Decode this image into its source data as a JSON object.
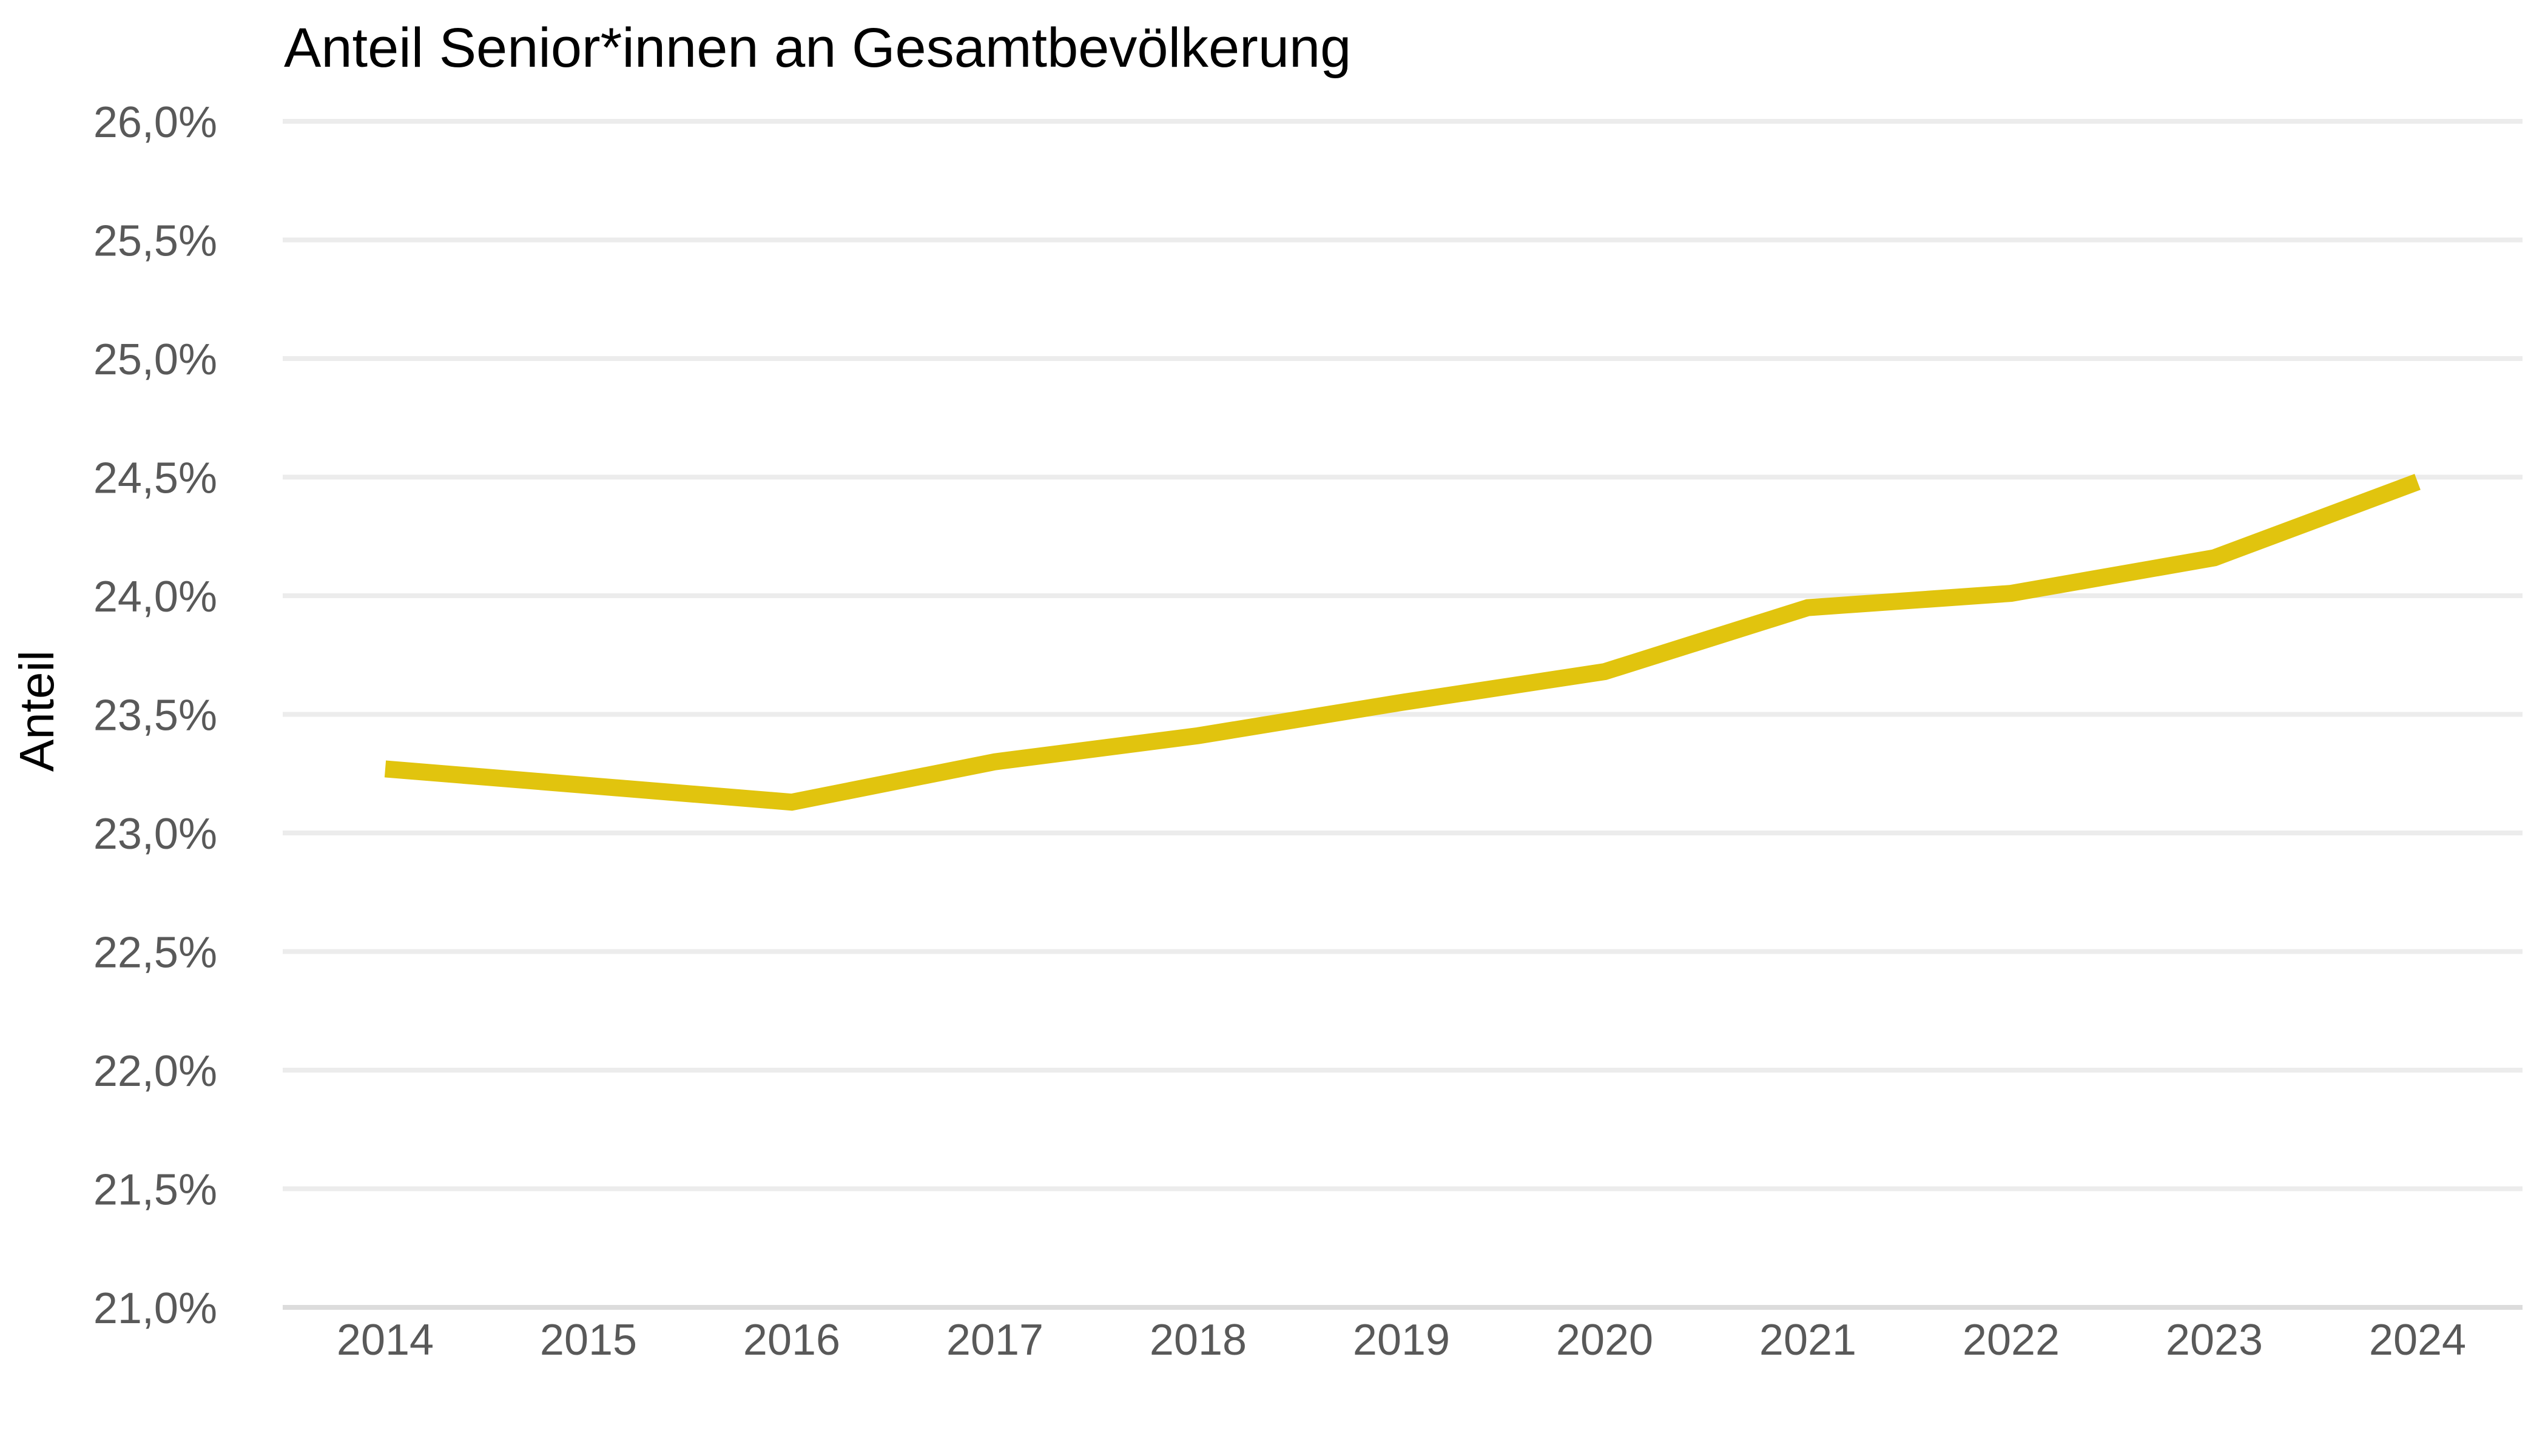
{
  "chart_data": {
    "type": "line",
    "title": "Anteil Senior*innen an Gesamtbevölkerung",
    "ylabel": "Anteil",
    "xlabel": "",
    "categories": [
      "2014",
      "2015",
      "2016",
      "2017",
      "2018",
      "2019",
      "2020",
      "2021",
      "2022",
      "2023",
      "2024"
    ],
    "values": [
      23.27,
      23.2,
      23.13,
      23.3,
      23.41,
      23.55,
      23.68,
      23.95,
      24.01,
      24.16,
      24.48
    ],
    "ylim": [
      21.0,
      26.0
    ],
    "ytick_step": 0.5,
    "ytick_labels": [
      "26,0%",
      "25,5%",
      "25,0%",
      "24,5%",
      "24,0%",
      "23,5%",
      "23,0%",
      "22,5%",
      "22,0%",
      "21,5%",
      "21,0%"
    ],
    "grid": true,
    "legend": false,
    "number_format": "de-comma-percent",
    "colors": {
      "line": "#E1C40E",
      "grid": "#ECECEC",
      "axis": "#DCDCDC",
      "tick_label": "#595959",
      "title": "#000000"
    }
  }
}
